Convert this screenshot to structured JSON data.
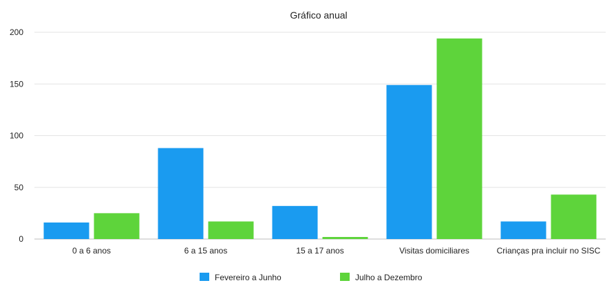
{
  "chart_data": {
    "type": "bar",
    "title": "Gráfico anual",
    "xlabel": "",
    "ylabel": "",
    "ylim": [
      0,
      200
    ],
    "yticks": [
      0,
      50,
      100,
      150,
      200
    ],
    "categories": [
      "0 a 6 anos",
      "6 a 15 anos",
      "15 a 17 anos",
      "Visitas domiciliares",
      "Crianças pra incluir no SISC"
    ],
    "series": [
      {
        "name": "Fevereiro a Junho",
        "color": "#1a9bf0",
        "values": [
          16,
          88,
          32,
          149,
          17
        ]
      },
      {
        "name": "Julho a Dezembro",
        "color": "#5ed43b",
        "values": [
          25,
          17,
          2,
          194,
          43
        ]
      }
    ],
    "grid": true,
    "legend": "bottom"
  }
}
